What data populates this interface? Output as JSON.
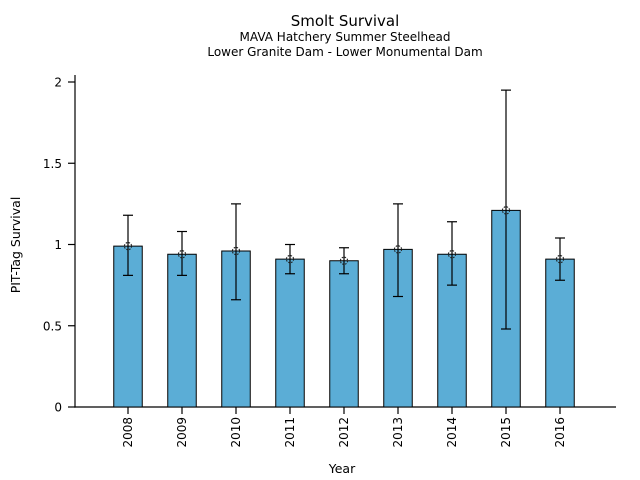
{
  "chart_data": {
    "type": "bar",
    "title": "Smolt Survival",
    "subtitle": [
      "MAVA Hatchery Summer Steelhead",
      "Lower Granite Dam - Lower Monumental Dam"
    ],
    "xlabel": "Year",
    "ylabel": "PIT-Tag Survival",
    "categories": [
      "2008",
      "2009",
      "2010",
      "2011",
      "2012",
      "2013",
      "2014",
      "2015",
      "2016"
    ],
    "series": [
      {
        "name": "PIT-Tag Survival",
        "values": [
          0.99,
          0.94,
          0.96,
          0.91,
          0.9,
          0.97,
          0.94,
          1.21,
          0.91
        ],
        "error_low": [
          0.81,
          0.81,
          0.66,
          0.82,
          0.82,
          0.68,
          0.75,
          0.48,
          0.78
        ],
        "error_high": [
          1.18,
          1.08,
          1.25,
          1.0,
          0.98,
          1.25,
          1.14,
          1.95,
          1.04
        ]
      }
    ],
    "ylim": [
      0,
      2
    ],
    "yticks": [
      0,
      0.5,
      1,
      1.5,
      2
    ],
    "ytick_labels": [
      "0",
      "0.5",
      "1",
      "1.5",
      "2"
    ],
    "grid": false,
    "legend_position": "none",
    "bar_color": "#5badd6",
    "bar_edge_color": "#000000",
    "errorbar_color": "#000000",
    "marker_style": "dotted-open-circle",
    "axis_color": "#000000"
  }
}
